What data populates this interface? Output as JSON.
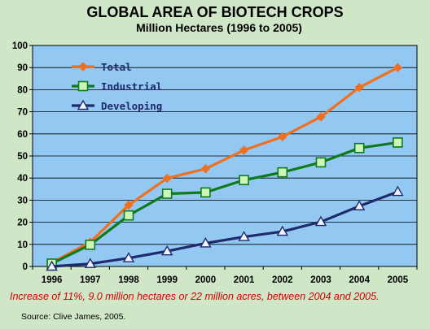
{
  "chart_data": {
    "type": "line",
    "title": "GLOBAL AREA OF BIOTECH CROPS",
    "subtitle": "Million Hectares (1996 to 2005)",
    "xlabel": "",
    "ylabel": "",
    "categories": [
      "1996",
      "1997",
      "1998",
      "1999",
      "2000",
      "2001",
      "2002",
      "2003",
      "2004",
      "2005"
    ],
    "ylim": [
      0,
      100
    ],
    "yticks": [
      0,
      10,
      20,
      30,
      40,
      50,
      60,
      70,
      80,
      90,
      100
    ],
    "grid": true,
    "legend_position": "top-left",
    "series": [
      {
        "name": "Total",
        "color": "#f07020",
        "marker": "diamond",
        "values": [
          1.7,
          11.0,
          27.8,
          39.9,
          44.2,
          52.6,
          58.7,
          67.7,
          81.0,
          90.0
        ]
      },
      {
        "name": "Industrial",
        "color": "#0e7a1c",
        "marker": "square",
        "values": [
          1.3,
          9.8,
          23.1,
          32.9,
          33.5,
          39.1,
          42.6,
          47.1,
          53.6,
          56.1
        ]
      },
      {
        "name": "Developing",
        "color": "#1f2a6b",
        "marker": "triangle",
        "values": [
          0.0,
          1.2,
          3.8,
          6.9,
          10.5,
          13.4,
          15.8,
          20.2,
          27.3,
          33.8
        ]
      }
    ],
    "colors": {
      "plot_background": "#92c8f2",
      "page_background": "#cfe6c7",
      "gridline": "#000000"
    }
  },
  "note": "Increase of 11%, 9.0 million hectares or 22 million acres, between 2004 and 2005.",
  "source": "Source: Clive James, 2005."
}
